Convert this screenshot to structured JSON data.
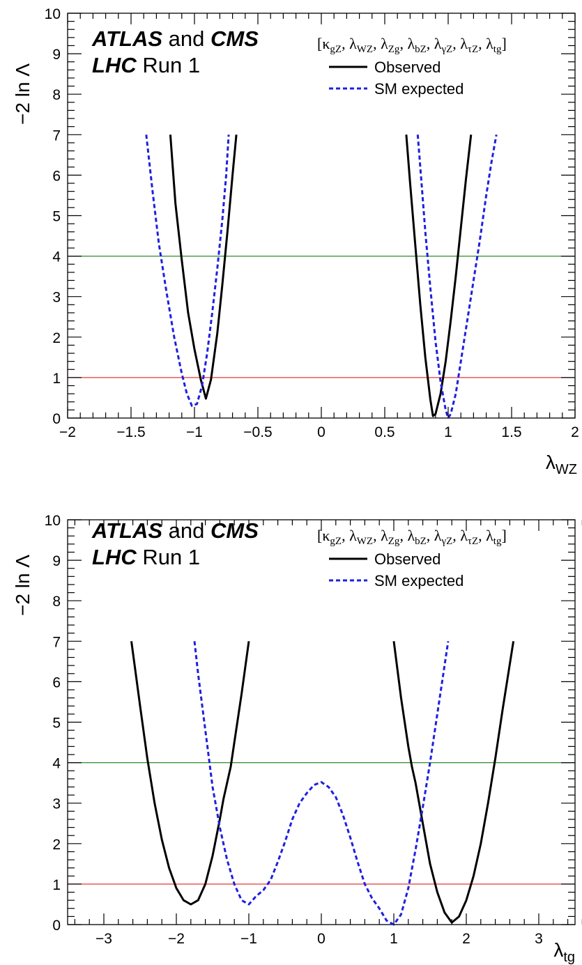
{
  "chart_data": [
    {
      "type": "line",
      "panel": "top",
      "experiment_label": {
        "bold_italic_1": "ATLAS",
        "plain_1": " and ",
        "bold_italic_2": "CMS"
      },
      "run_label": {
        "bold_italic": "LHC",
        "plain": " Run 1"
      },
      "parameters": "[κgZ, λWZ, λZg, λbZ, λγZ, λτZ, λtg]",
      "xlabel": "λWZ",
      "ylabel": "−2 ln Λ",
      "xlim": [
        -2,
        2
      ],
      "ylim": [
        0,
        10
      ],
      "x_ticks": [
        -2,
        -1.5,
        -1,
        -0.5,
        0,
        0.5,
        1,
        1.5,
        2
      ],
      "x_tick_labels": [
        "−2",
        "−1.5",
        "−1",
        "−0.5",
        "0",
        "0.5",
        "1",
        "1.5",
        "2"
      ],
      "y_ticks": [
        0,
        1,
        2,
        3,
        4,
        5,
        6,
        7,
        8,
        9,
        10
      ],
      "y_tick_labels": [
        "0",
        "1",
        "2",
        "3",
        "4",
        "5",
        "6",
        "7",
        "8",
        "9",
        "10"
      ],
      "reference_lines": [
        {
          "y": 1,
          "color": "#e53935"
        },
        {
          "y": 4,
          "color": "#2e8b2e"
        }
      ],
      "legend": {
        "placement": "top-right",
        "entries": [
          {
            "label": "Observed",
            "color": "#000000",
            "style": "solid"
          },
          {
            "label": "SM expected",
            "color": "#1f1fe0",
            "style": "dashed"
          }
        ]
      },
      "series": [
        {
          "name": "Observed",
          "color": "#000000",
          "style": "solid",
          "segments": [
            {
              "x": [
                -1.19,
                -1.15,
                -1.1,
                -1.05,
                -1.0,
                -0.95,
                -0.91,
                -0.87,
                -0.82,
                -0.78,
                -0.74,
                -0.7,
                -0.67
              ],
              "y": [
                7,
                5.3,
                3.9,
                2.6,
                1.7,
                0.95,
                0.48,
                0.95,
                2.1,
                3.3,
                4.6,
                6.0,
                7
              ]
            },
            {
              "x": [
                0.67,
                0.7,
                0.74,
                0.78,
                0.82,
                0.86,
                0.88,
                0.9,
                0.94,
                0.98,
                1.02,
                1.06,
                1.1,
                1.14,
                1.18
              ],
              "y": [
                7,
                5.8,
                4.3,
                2.8,
                1.5,
                0.45,
                0.05,
                0.1,
                0.6,
                1.4,
                2.4,
                3.5,
                4.7,
                5.9,
                7
              ]
            }
          ]
        },
        {
          "name": "SM expected",
          "color": "#1f1fe0",
          "style": "dashed",
          "segments": [
            {
              "x": [
                -1.38,
                -1.33,
                -1.28,
                -1.22,
                -1.16,
                -1.1,
                -1.06,
                -1.02,
                -0.98,
                -0.94,
                -0.9,
                -0.86,
                -0.82,
                -0.78,
                -0.75,
                -0.73
              ],
              "y": [
                7,
                5.6,
                4.3,
                3.1,
                2.0,
                1.1,
                0.6,
                0.3,
                0.35,
                0.8,
                1.6,
                2.6,
                3.7,
                4.9,
                6.0,
                7
              ]
            },
            {
              "x": [
                0.76,
                0.79,
                0.82,
                0.86,
                0.9,
                0.94,
                0.98,
                1.0,
                1.02,
                1.06,
                1.1,
                1.15,
                1.2,
                1.25,
                1.3,
                1.34,
                1.38
              ],
              "y": [
                7,
                5.8,
                4.6,
                3.2,
                1.9,
                0.9,
                0.2,
                0.0,
                0.1,
                0.6,
                1.4,
                2.4,
                3.4,
                4.4,
                5.5,
                6.3,
                7
              ]
            }
          ]
        }
      ]
    },
    {
      "type": "line",
      "panel": "bottom",
      "experiment_label": {
        "bold_italic_1": "ATLAS",
        "plain_1": " and ",
        "bold_italic_2": "CMS"
      },
      "run_label": {
        "bold_italic": "LHC",
        "plain": " Run 1"
      },
      "parameters": "[κgZ, λWZ, λZg, λbZ, λγZ, λτZ, λtg]",
      "xlabel": "λtg",
      "ylabel": "−2 ln Λ",
      "xlim": [
        -3.5,
        3.5
      ],
      "ylim": [
        0,
        10
      ],
      "x_ticks": [
        -3,
        -2,
        -1,
        0,
        1,
        2,
        3
      ],
      "x_tick_labels": [
        "−3",
        "−2",
        "−1",
        "0",
        "1",
        "2",
        "3"
      ],
      "y_ticks": [
        0,
        1,
        2,
        3,
        4,
        5,
        6,
        7,
        8,
        9,
        10
      ],
      "y_tick_labels": [
        "0",
        "1",
        "2",
        "3",
        "4",
        "5",
        "6",
        "7",
        "8",
        "9",
        "10"
      ],
      "reference_lines": [
        {
          "y": 1,
          "color": "#e53935"
        },
        {
          "y": 4,
          "color": "#2e8b2e"
        }
      ],
      "legend": {
        "placement": "top-right",
        "entries": [
          {
            "label": "Observed",
            "color": "#000000",
            "style": "solid"
          },
          {
            "label": "SM expected",
            "color": "#1f1fe0",
            "style": "dashed"
          }
        ]
      },
      "series": [
        {
          "name": "Observed",
          "color": "#000000",
          "style": "solid",
          "segments": [
            {
              "x": [
                -2.62,
                -2.5,
                -2.4,
                -2.3,
                -2.2,
                -2.1,
                -2.0,
                -1.9,
                -1.8,
                -1.7,
                -1.6,
                -1.5,
                -1.4,
                -1.35,
                -1.3,
                -1.25,
                -1.2,
                -1.1,
                -1.0
              ],
              "y": [
                7,
                5.4,
                4.1,
                3.0,
                2.1,
                1.4,
                0.9,
                0.6,
                0.5,
                0.6,
                1.0,
                1.7,
                2.6,
                3.1,
                3.5,
                3.9,
                4.5,
                5.7,
                7
              ]
            },
            {
              "x": [
                1.0,
                1.1,
                1.2,
                1.25,
                1.3,
                1.35,
                1.4,
                1.5,
                1.6,
                1.7,
                1.8,
                1.9,
                2.0,
                2.1,
                2.2,
                2.3,
                2.4,
                2.5,
                2.65
              ],
              "y": [
                7,
                5.6,
                4.4,
                3.9,
                3.5,
                3.0,
                2.5,
                1.5,
                0.8,
                0.3,
                0.05,
                0.2,
                0.6,
                1.2,
                2.0,
                3.0,
                4.1,
                5.3,
                7
              ]
            }
          ]
        },
        {
          "name": "SM expected",
          "color": "#1f1fe0",
          "style": "dashed",
          "segments": [
            {
              "x": [
                -1.75,
                -1.7,
                -1.65,
                -1.6,
                -1.55,
                -1.5,
                -1.45,
                -1.4,
                -1.3,
                -1.2,
                -1.1,
                -1.0,
                -0.9,
                -0.8,
                -0.7,
                -0.6,
                -0.5,
                -0.4,
                -0.3,
                -0.2,
                -0.1,
                0.0,
                0.1,
                0.2,
                0.3,
                0.4,
                0.5,
                0.6,
                0.7,
                0.8,
                0.9,
                1.0,
                1.1,
                1.2,
                1.3,
                1.4,
                1.5,
                1.6,
                1.65,
                1.7,
                1.75
              ],
              "y": [
                7,
                6.2,
                5.5,
                4.8,
                4.1,
                3.4,
                2.9,
                2.4,
                1.6,
                1.0,
                0.6,
                0.5,
                0.7,
                0.85,
                1.1,
                1.55,
                2.05,
                2.6,
                3.0,
                3.25,
                3.45,
                3.52,
                3.4,
                3.15,
                2.7,
                2.15,
                1.55,
                1.0,
                0.65,
                0.4,
                0.1,
                0.0,
                0.25,
                0.9,
                1.85,
                2.9,
                4.0,
                5.2,
                5.8,
                6.4,
                7
              ]
            }
          ]
        }
      ]
    }
  ]
}
